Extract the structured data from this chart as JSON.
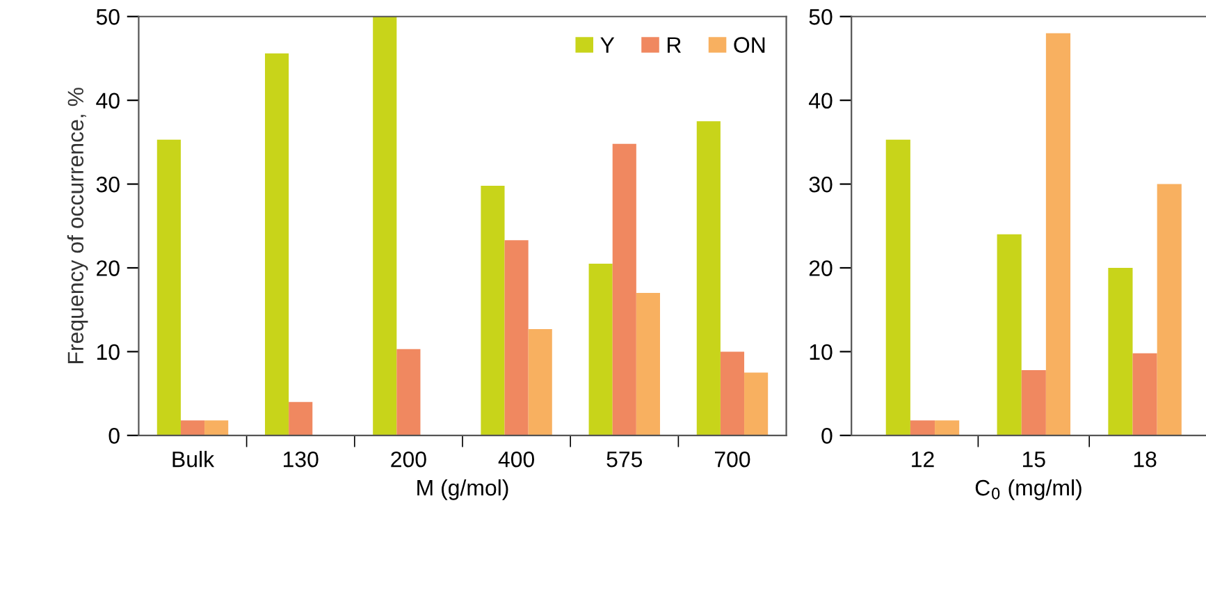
{
  "chart_data": [
    {
      "type": "bar",
      "xlabel": "M (g/mol)",
      "ylabel": "Frequency of occurrence, %",
      "categories": [
        "Bulk",
        "130",
        "200",
        "400",
        "575",
        "700"
      ],
      "series": [
        {
          "name": "Y",
          "color": "#c8d41a",
          "values": [
            35.3,
            45.6,
            50,
            29.8,
            20.5,
            37.5
          ]
        },
        {
          "name": "R",
          "color": "#f08860",
          "values": [
            1.8,
            4,
            10.3,
            23.3,
            34.8,
            10
          ]
        },
        {
          "name": "ON",
          "color": "#f8b060",
          "values": [
            1.8,
            0,
            0,
            12.7,
            17,
            7.5
          ]
        }
      ],
      "ylim": [
        0,
        50
      ],
      "yticks": [
        0,
        10,
        20,
        30,
        40,
        50
      ],
      "grid": false,
      "legend": "top right"
    },
    {
      "type": "bar",
      "xlabel": "C$_{0}$ (mg/ml)",
      "categories": [
        "12",
        "15",
        "18"
      ],
      "series": [
        {
          "color": "#c8d41a",
          "values": [
            35.3,
            24,
            20
          ]
        },
        {
          "color": "#f08860",
          "values": [
            1.8,
            7.8,
            9.8
          ]
        },
        {
          "color": "#f8b060",
          "values": [
            1.8,
            48,
            30
          ]
        }
      ],
      "ylim": [
        0,
        50
      ],
      "yticks": [
        0,
        10,
        20,
        30,
        40,
        50
      ],
      "grid": false,
      "legend": false
    }
  ]
}
